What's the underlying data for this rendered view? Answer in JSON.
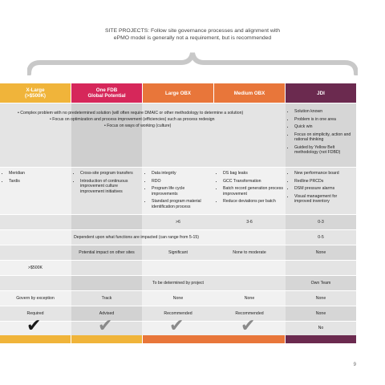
{
  "header": {
    "line1": "SITE PROJECTS: Follow site governance processes and alignment with",
    "line2": "ePMO model is generally not a requirement, but is recommended"
  },
  "columns": [
    {
      "label_line1": "X-Large",
      "label_line2": "(>$500K)",
      "color": "#f0b43a"
    },
    {
      "label_line1": "One FDB",
      "label_line2": "Global Potential",
      "color": "#d6275a"
    },
    {
      "label_line1": "Large OBX",
      "label_line2": "",
      "color": "#e8763a"
    },
    {
      "label_line1": "Medium OBX",
      "label_line2": "",
      "color": "#e8763a"
    },
    {
      "label_line1": "JDI",
      "label_line2": "",
      "color": "#6b2a4f"
    }
  ],
  "row_overview": {
    "line1": "• Complex problem with no predetermined solution (will often require DMAIC or other methodology to determine a solution)",
    "line2": "• Focus on optimization and process improvement (efficiencies) such as process redesign",
    "line3": "• Focus on ways of working (culture)",
    "jdi_items": [
      "Solution known",
      "Problem is in one area",
      "Quick win",
      "Focus on simplicity, action and rational thinking",
      "Guided by Yellow Belt methodology (not FDBD)"
    ]
  },
  "row_examples": {
    "xlarge": [
      "Meridian",
      "Tardis"
    ],
    "onefdb": [
      "Cross-site program transfers",
      "Introduction of continuous improvement culture improvement initiatives"
    ],
    "large": [
      "Data integrity",
      "RDO",
      "Program life cycle improvements",
      "Standard program material identification process"
    ],
    "medium": [
      "DS bag leaks",
      "GCC Transformation",
      "Batch record generation process improvement",
      "Reduce deviations per batch"
    ],
    "jdi": [
      "New performance board",
      "Redline PRCDs",
      "DSM pressure alarms",
      "Visual management for improved inventory"
    ]
  },
  "row_duration": {
    "large": ">6",
    "medium": "3-6",
    "jdi": "0-3"
  },
  "row_dependent": {
    "text": "Dependent upon what functions are impacted (can range from 5-15)",
    "jdi": "0-5"
  },
  "row_impact": {
    "onefdb": "Potential impact on other sites",
    "large": "Significant",
    "medium": "None to moderate",
    "jdi": "None"
  },
  "row_cost": {
    "xlarge": ">$500K"
  },
  "row_team": {
    "text": "To be determined by project",
    "jdi": "Own Team"
  },
  "row_governance": {
    "xlarge": "Govern by exception",
    "onefdb": "Track",
    "large": "None",
    "medium": "None",
    "jdi": "None"
  },
  "row_epmo": {
    "xlarge": "Required",
    "onefdb": "Advised",
    "large": "Recommended",
    "medium": "Recommended",
    "jdi": "None"
  },
  "row_check": {
    "symbol": "✔",
    "jdi": "No"
  },
  "page_number": "9"
}
